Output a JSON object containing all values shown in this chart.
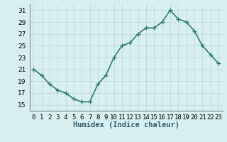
{
  "x": [
    0,
    1,
    2,
    3,
    4,
    5,
    6,
    7,
    8,
    9,
    10,
    11,
    12,
    13,
    14,
    15,
    16,
    17,
    18,
    19,
    20,
    21,
    22,
    23
  ],
  "y": [
    21,
    20,
    18.5,
    17.5,
    17,
    16,
    15.5,
    15.5,
    18.5,
    20,
    23,
    25,
    25.5,
    27,
    28,
    28,
    29,
    31,
    29.5,
    29,
    27.5,
    25,
    23.5,
    22
  ],
  "line_color": "#2e7d6e",
  "marker": "+",
  "marker_size": 5,
  "bg_color": "#d8efef",
  "grid_color": "#c0dada",
  "xlabel": "Humidex (Indice chaleur)",
  "xlim": [
    -0.5,
    23.5
  ],
  "ylim": [
    14,
    32
  ],
  "yticks": [
    15,
    17,
    19,
    21,
    23,
    25,
    27,
    29,
    31
  ],
  "xticks": [
    0,
    1,
    2,
    3,
    4,
    5,
    6,
    7,
    8,
    9,
    10,
    11,
    12,
    13,
    14,
    15,
    16,
    17,
    18,
    19,
    20,
    21,
    22,
    23
  ],
  "xtick_labels": [
    "0",
    "1",
    "2",
    "3",
    "4",
    "5",
    "6",
    "7",
    "8",
    "9",
    "10",
    "11",
    "12",
    "13",
    "14",
    "15",
    "16",
    "17",
    "18",
    "19",
    "20",
    "21",
    "22",
    "23"
  ],
  "linewidth": 1.2,
  "tick_fontsize": 6.5,
  "xlabel_fontsize": 7.5
}
